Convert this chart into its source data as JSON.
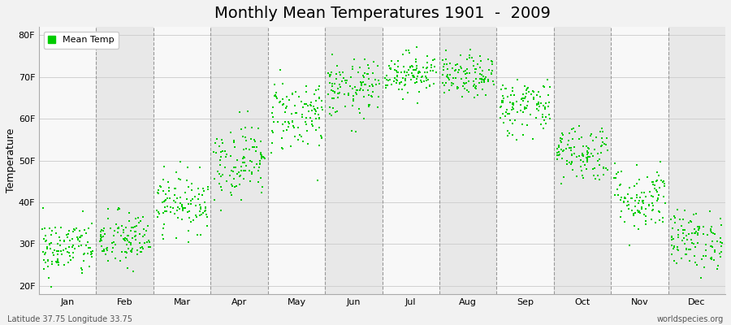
{
  "title": "Monthly Mean Temperatures 1901  -  2009",
  "ylabel": "Temperature",
  "xlabel_months": [
    "Jan",
    "Feb",
    "Mar",
    "Apr",
    "May",
    "Jun",
    "Jul",
    "Aug",
    "Sep",
    "Oct",
    "Nov",
    "Dec"
  ],
  "ytick_labels": [
    "20F",
    "30F",
    "40F",
    "50F",
    "60F",
    "70F",
    "80F"
  ],
  "ytick_values": [
    20,
    30,
    40,
    50,
    60,
    70,
    80
  ],
  "ylim": [
    18,
    82
  ],
  "xlim": [
    -0.5,
    12.5
  ],
  "dot_color": "#00cc00",
  "dot_size": 3,
  "background_color": "#f2f2f2",
  "band_color_light": "#f8f8f8",
  "band_color_dark": "#e8e8e8",
  "grid_color": "#d0d0d0",
  "vline_color": "#999999",
  "legend_label": "Mean Temp",
  "bottom_left_text": "Latitude 37.75 Longitude 33.75",
  "bottom_right_text": "worldspecies.org",
  "title_fontsize": 14,
  "axis_fontsize": 8,
  "label_fontsize": 9,
  "monthly_mean_temps_F": [
    29,
    31,
    40,
    50,
    61,
    67,
    71,
    70,
    63,
    52,
    41,
    31
  ],
  "monthly_std_F": [
    3.5,
    3.5,
    3.5,
    4.5,
    4.5,
    3.5,
    2.5,
    2.5,
    3.5,
    3.5,
    4.0,
    3.5
  ],
  "n_years": 109,
  "random_seed": 42
}
